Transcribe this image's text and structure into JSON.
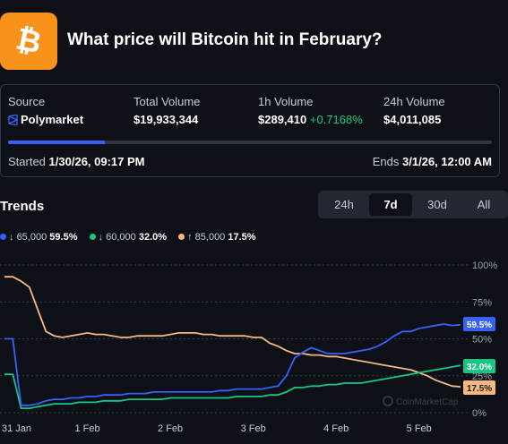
{
  "market": {
    "title": "What price will Bitcoin hit in February?",
    "logo_icon": "bitcoin-logo"
  },
  "stats": {
    "source_label": "Source",
    "source_value": "Polymarket",
    "total_volume_label": "Total Volume",
    "total_volume_value": "$19,933,344",
    "h1_volume_label": "1h Volume",
    "h1_volume_value": "$289,410",
    "h1_volume_change": "+0.7168%",
    "h24_volume_label": "24h Volume",
    "h24_volume_value": "$4,011,085"
  },
  "timeline": {
    "started_label": "Started",
    "started_value": "1/30/26, 09:17 PM",
    "ends_label": "Ends",
    "ends_value": "3/1/26, 12:00 AM",
    "progress": 0.2
  },
  "trends": {
    "title": "Trends",
    "tabs": [
      {
        "label": "24h",
        "active": false
      },
      {
        "label": "7d",
        "active": true
      },
      {
        "label": "30d",
        "active": false
      },
      {
        "label": "All",
        "active": false
      }
    ]
  },
  "legend": [
    {
      "arrow": "↓",
      "name": "65,000",
      "value": "59.5%",
      "color": "#3861fb"
    },
    {
      "arrow": "↓",
      "name": "60,000",
      "value": "32.0%",
      "color": "#16c784"
    },
    {
      "arrow": "↑",
      "name": "85,000",
      "value": "17.5%",
      "color": "#f6b87e"
    }
  ],
  "watermark": "CoinMarketCap",
  "chart_data": {
    "type": "line",
    "x": [
      -0.2,
      -0.1,
      0.0,
      0.1,
      0.2,
      0.3,
      0.4,
      0.5,
      0.6,
      0.7,
      0.8,
      0.9,
      1.0,
      1.1,
      1.2,
      1.3,
      1.4,
      1.5,
      1.6,
      1.7,
      1.8,
      1.9,
      2.0,
      2.1,
      2.2,
      2.3,
      2.4,
      2.5,
      2.6,
      2.7,
      2.8,
      2.9,
      3.0,
      3.1,
      3.2,
      3.3,
      3.4,
      3.5,
      3.6,
      3.7,
      3.8,
      3.9,
      4.0,
      4.1,
      4.2,
      4.3,
      4.4,
      4.5,
      4.6,
      4.7,
      4.8,
      4.9,
      5.0,
      5.1,
      5.2,
      5.3
    ],
    "x_tick_labels": [
      "31 Jan",
      "1 Feb",
      "2 Feb",
      "3 Feb",
      "4 Feb",
      "5 Feb"
    ],
    "x_tick_positions": [
      -0.2,
      0.8,
      1.8,
      2.8,
      3.8,
      4.8
    ],
    "series": [
      {
        "name": "65,000",
        "color": "#3861fb",
        "values": [
          50,
          50,
          5,
          5,
          6,
          8,
          9,
          9,
          10,
          10,
          11,
          11,
          12,
          12,
          12,
          13,
          13,
          13,
          14,
          14,
          14,
          14,
          14,
          14,
          14,
          14,
          15,
          15,
          16,
          16,
          16,
          16,
          17,
          18,
          25,
          37,
          41,
          44,
          42,
          40,
          40,
          40,
          41,
          42,
          43,
          45,
          48,
          52,
          55,
          55,
          57,
          58,
          59,
          60,
          59,
          59.5
        ]
      },
      {
        "name": "60,000",
        "color": "#16c784",
        "values": [
          26,
          26,
          3,
          3,
          4,
          5,
          6,
          6,
          6,
          7,
          7,
          7,
          8,
          8,
          8,
          9,
          9,
          9,
          9,
          9,
          10,
          10,
          10,
          10,
          10,
          10,
          10,
          10,
          11,
          11,
          11,
          11,
          12,
          12,
          14,
          17,
          17,
          18,
          18,
          19,
          19,
          20,
          20,
          20,
          21,
          22,
          23,
          24,
          25,
          26,
          27,
          28,
          29,
          30,
          31,
          32.0
        ]
      },
      {
        "name": "85,000",
        "color": "#f6b87e",
        "values": [
          92,
          92,
          89,
          85,
          70,
          55,
          52,
          51,
          52,
          53,
          54,
          53,
          53,
          52,
          51,
          51,
          52,
          52,
          52,
          52,
          53,
          54,
          54,
          54,
          53,
          53,
          52,
          52,
          52,
          52,
          51,
          51,
          47,
          45,
          42,
          40,
          40,
          39,
          39,
          38,
          38,
          37,
          36,
          35,
          34,
          33,
          32,
          31,
          30,
          29,
          27,
          25,
          22,
          20,
          18,
          17.5
        ]
      }
    ],
    "y_tick_labels": [
      "100%",
      "75%",
      "50%",
      "25%",
      "0%"
    ],
    "y_tick_values": [
      100,
      75,
      50,
      25,
      0
    ],
    "ylim": [
      0,
      100
    ],
    "grid": true,
    "end_labels": [
      "59.5%",
      "32.0%",
      "17.5%"
    ]
  }
}
